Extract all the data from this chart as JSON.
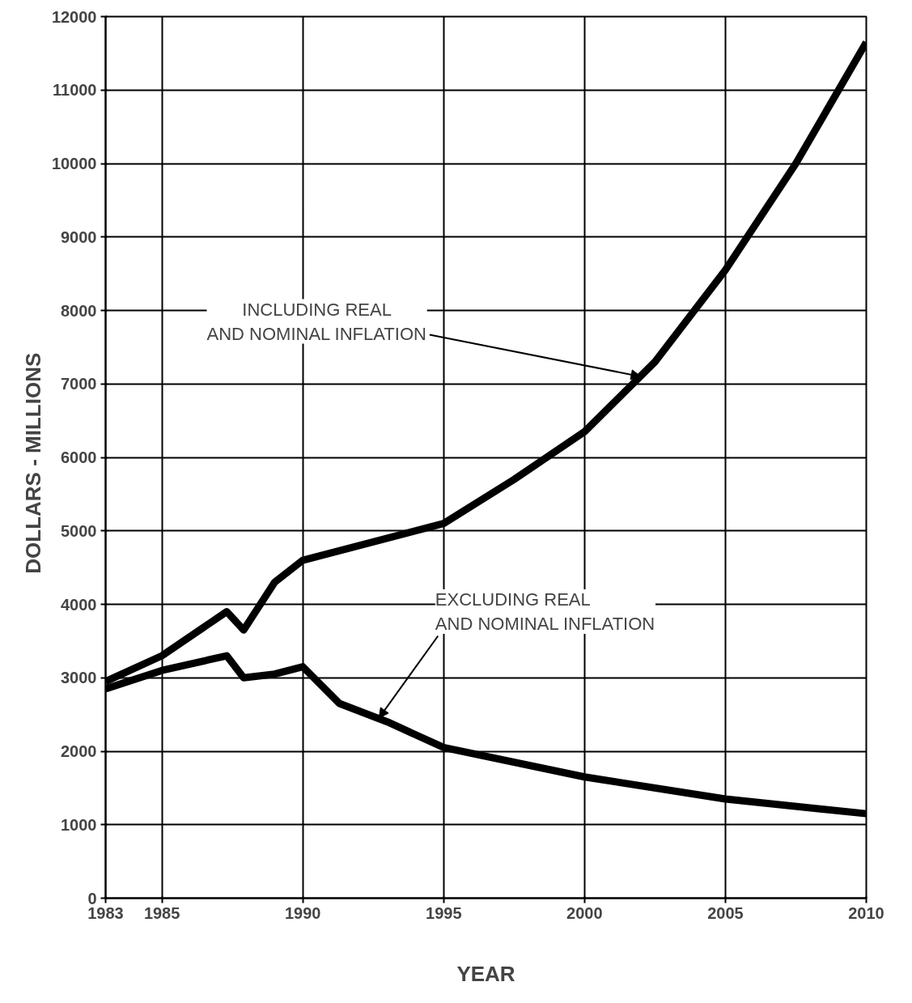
{
  "chart_data": {
    "type": "line",
    "xlabel": "YEAR",
    "ylabel": "DOLLARS  -  MILLIONS",
    "xlim": [
      1983,
      2010
    ],
    "xticks": [
      1983,
      1985,
      1990,
      1995,
      2000,
      2005,
      2010
    ],
    "ylim": [
      0,
      12000
    ],
    "yticks": [
      0,
      1000,
      2000,
      3000,
      4000,
      5000,
      6000,
      7000,
      8000,
      9000,
      10000,
      11000,
      12000
    ],
    "grid": true,
    "marker": "none",
    "line_style": "solid",
    "series": [
      {
        "color": "#000000",
        "x": [
          1983,
          1985,
          1987.3,
          1987.9,
          1989,
          1990,
          1995,
          1997.5,
          2000,
          2002.5,
          2005,
          2007.5,
          2010
        ],
        "values": [
          2950,
          3300,
          3900,
          3650,
          4300,
          4600,
          5100,
          5700,
          6350,
          7300,
          8550,
          10000,
          11650
        ]
      },
      {
        "color": "#000000",
        "x": [
          1983,
          1985,
          1987.3,
          1987.9,
          1989,
          1990,
          1991.3,
          1993,
          1995,
          2000,
          2005,
          2010
        ],
        "values": [
          2850,
          3100,
          3300,
          3000,
          3050,
          3150,
          2650,
          2400,
          2050,
          1650,
          1350,
          1150
        ]
      }
    ],
    "annotations": [
      {
        "text": "INCLUDING REAL\nAND NOMINAL INFLATION",
        "x": 2002,
        "y": 7100
      },
      {
        "text": "EXCLUDING REAL\nAND NOMINAL INFLATION",
        "x": 1992.7,
        "y": 2450
      }
    ]
  }
}
